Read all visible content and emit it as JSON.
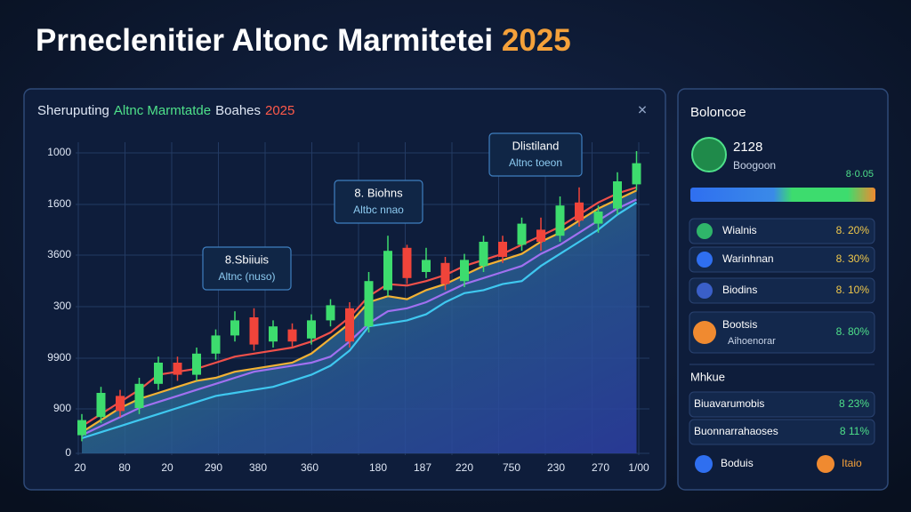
{
  "header": {
    "title": "Prneclenitier Altonc Marmitetei",
    "year": "2025"
  },
  "chart_data": {
    "type": "candlestick",
    "title_parts": [
      "Sheruputing",
      "Altnc Marmtatde",
      "Boahes",
      "2025"
    ],
    "title_colors": [
      "#dfe7f5",
      "#4ee08a",
      "#dfe7f5",
      "#ff5a4a"
    ],
    "ylim": [
      0,
      1000
    ],
    "y_labels": [
      "1000",
      "1600",
      "3600",
      "300",
      "9900",
      "900",
      "0"
    ],
    "x_labels": [
      "20",
      "80",
      "20",
      "290",
      "380",
      "360",
      "180",
      "187",
      "220",
      "750",
      "230",
      "270",
      "1/00"
    ],
    "up_color": "#3ddc6e",
    "down_color": "#f0443a",
    "candles": {
      "open": [
        60,
        120,
        190,
        150,
        230,
        300,
        260,
        330,
        390,
        450,
        370,
        410,
        380,
        440,
        480,
        420,
        540,
        680,
        600,
        630,
        570,
        620,
        700,
        690,
        740,
        720,
        830,
        760,
        810,
        890
      ],
      "close": [
        110,
        200,
        140,
        230,
        300,
        260,
        330,
        390,
        440,
        360,
        420,
        370,
        440,
        490,
        370,
        570,
        670,
        580,
        640,
        560,
        640,
        700,
        650,
        760,
        700,
        820,
        770,
        800,
        900,
        960
      ],
      "high": [
        130,
        220,
        210,
        250,
        320,
        320,
        350,
        410,
        470,
        480,
        440,
        430,
        460,
        510,
        500,
        600,
        720,
        690,
        680,
        650,
        660,
        720,
        720,
        780,
        780,
        850,
        880,
        820,
        930,
        1000
      ],
      "low": [
        40,
        100,
        120,
        130,
        210,
        240,
        240,
        310,
        370,
        340,
        350,
        350,
        360,
        420,
        350,
        400,
        520,
        560,
        580,
        540,
        550,
        600,
        630,
        670,
        670,
        700,
        750,
        730,
        790,
        870
      ]
    },
    "lines": [
      {
        "color": "#f0504a",
        "values": [
          90,
          130,
          170,
          210,
          260,
          270,
          280,
          300,
          320,
          330,
          340,
          350,
          370,
          400,
          450,
          520,
          560,
          555,
          570,
          590,
          620,
          640,
          660,
          690,
          720,
          750,
          790,
          830,
          860,
          880
        ]
      },
      {
        "color": "#f2b134",
        "area": true,
        "values": [
          70,
          110,
          150,
          180,
          200,
          220,
          240,
          250,
          270,
          280,
          290,
          300,
          330,
          380,
          430,
          500,
          520,
          510,
          540,
          560,
          590,
          620,
          640,
          660,
          700,
          730,
          770,
          810,
          840,
          870
        ]
      },
      {
        "color": "#a070f0",
        "values": [
          60,
          90,
          120,
          150,
          170,
          190,
          210,
          230,
          250,
          270,
          280,
          290,
          300,
          320,
          370,
          430,
          470,
          480,
          500,
          530,
          560,
          580,
          600,
          620,
          660,
          690,
          730,
          770,
          810,
          840
        ]
      },
      {
        "color": "#3fc8f0",
        "values": [
          50,
          70,
          90,
          110,
          130,
          150,
          170,
          190,
          200,
          210,
          220,
          240,
          260,
          290,
          340,
          420,
          430,
          440,
          460,
          500,
          530,
          540,
          560,
          570,
          620,
          660,
          700,
          740,
          790,
          830
        ]
      }
    ],
    "annotations": [
      {
        "title": "8.Sbiiuis",
        "subtitle": "Altnc (nuso)"
      },
      {
        "title": "8. Biohns",
        "subtitle": "Altbc nnao"
      },
      {
        "title": "Dlistiland",
        "subtitle": "Altnc toeon"
      }
    ]
  },
  "sidebar": {
    "title": "Boloncoe",
    "coin": {
      "value": "2128",
      "label": "Boogoon"
    },
    "progress_label": "8·0.05",
    "items": [
      {
        "name": "Wialnis",
        "value": "8. 20%"
      },
      {
        "name": "Warinhnan",
        "value": "8. 30%"
      },
      {
        "name": "Biodins",
        "value": "8. 10%"
      },
      {
        "name": "Bootsis",
        "sub": "Aihoenorar",
        "value": "8. 80%"
      }
    ],
    "section": "Mhkue",
    "section_items": [
      {
        "name": "Biuavarumobis",
        "value": "8 23%"
      },
      {
        "name": "Buonnarrahaoses",
        "value": "8 11%"
      }
    ],
    "footer": [
      "Boduis",
      "Itaio"
    ]
  }
}
